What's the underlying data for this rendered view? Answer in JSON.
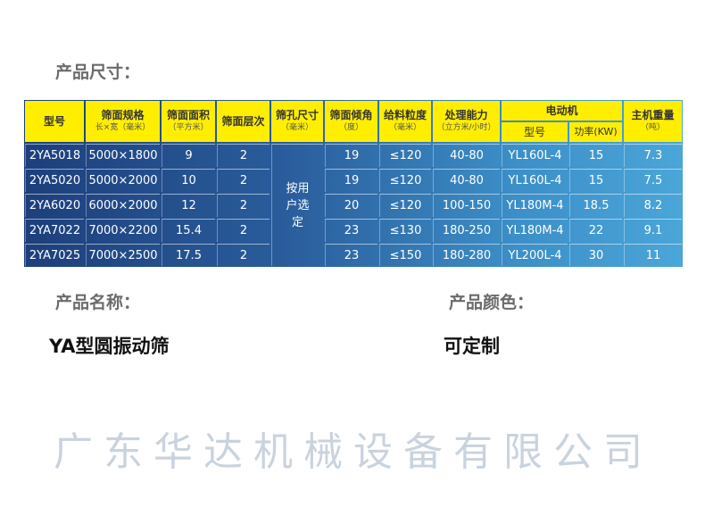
{
  "size_title": "产品尺寸：",
  "name_title": "产品名称：",
  "name_value": "YA型圆振动筛",
  "color_title": "产品颜色：",
  "color_value": "可定制",
  "watermark": "广东华达机械设备有限公司",
  "headers": {
    "model": "型号",
    "spec": "筛面规格",
    "spec_unit": "长×宽（毫米）",
    "area": "筛面面积",
    "area_unit": "（平方米）",
    "layers": "筛面层次",
    "hole": "筛孔尺寸",
    "hole_unit": "（毫米）",
    "angle": "筛面倾角",
    "angle_unit": "（度）",
    "feed": "给料粒度",
    "feed_unit": "（毫米）",
    "capacity": "处理能力",
    "capacity_unit": "（立方米/小时）",
    "motor": "电动机",
    "motor_model": "型号",
    "motor_power": "功率(KW)",
    "weight": "主机重量",
    "weight_unit": "（吨）"
  },
  "hole_value": "按用户选定",
  "rows": [
    [
      "2YA5018",
      "5000×1800",
      "9",
      "2",
      "19",
      "≤120",
      "40-80",
      "YL160L-4",
      "15",
      "7.3"
    ],
    [
      "2YA5020",
      "5000×2000",
      "10",
      "2",
      "19",
      "≤120",
      "40-80",
      "YL160L-4",
      "15",
      "7.5"
    ],
    [
      "2YA6020",
      "6000×2000",
      "12",
      "2",
      "20",
      "≤120",
      "100-150",
      "YL180M-4",
      "18.5",
      "8.2"
    ],
    [
      "2YA7022",
      "7000×2200",
      "15.4",
      "2",
      "23",
      "≤130",
      "180-250",
      "YL180M-4",
      "22",
      "9.1"
    ],
    [
      "2YA7025",
      "7000×2500",
      "17.5",
      "2",
      "23",
      "≤150",
      "180-280",
      "YL200L-4",
      "30",
      "11"
    ]
  ],
  "colors": {
    "header": "#ffee00",
    "table_dark": "#1d3f7c",
    "table_light": "#4aa6d8"
  }
}
